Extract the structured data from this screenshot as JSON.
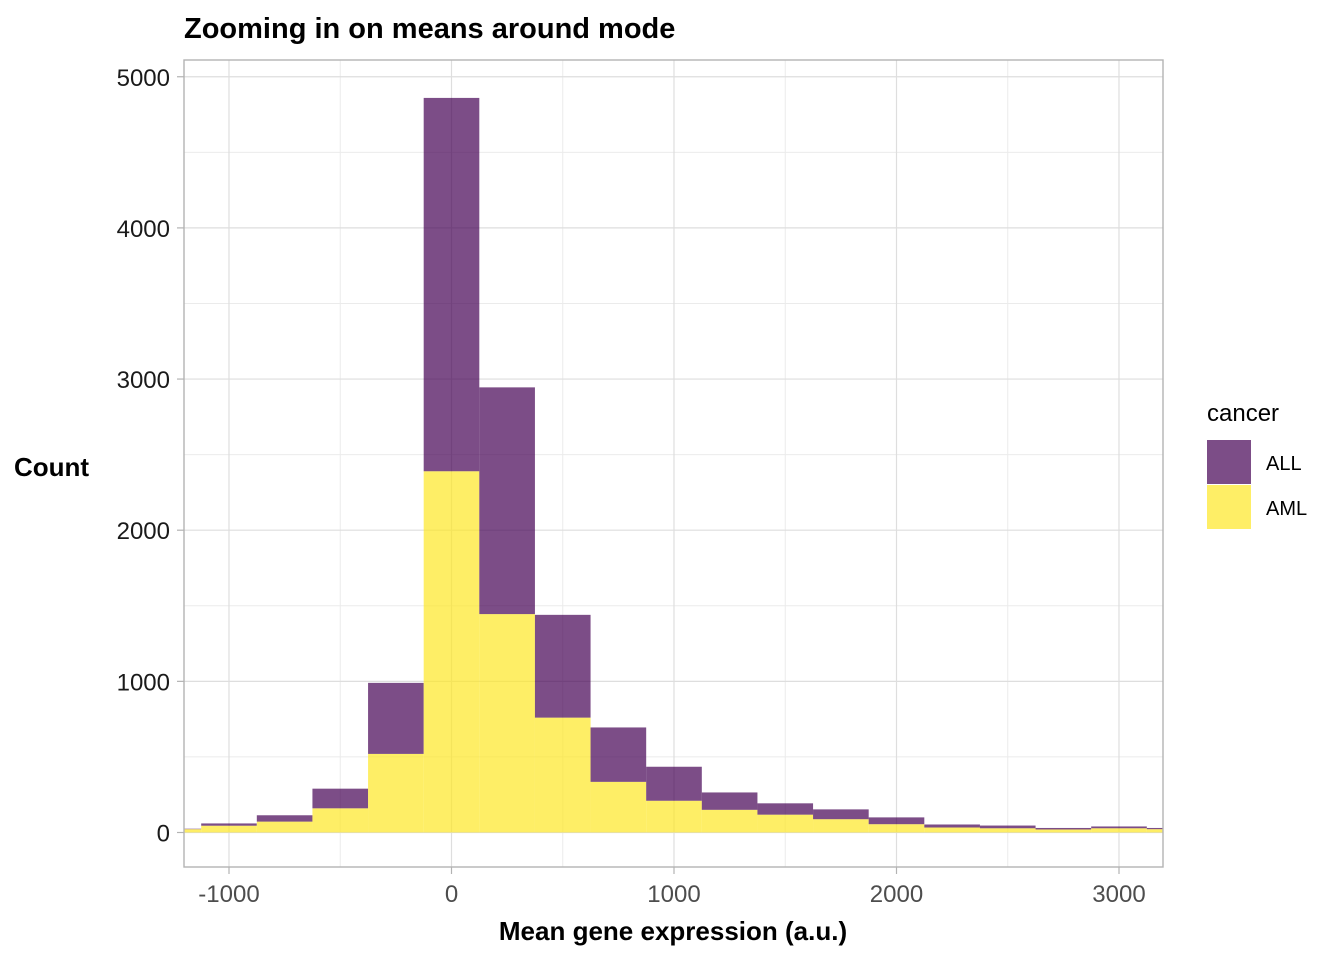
{
  "chart_data": {
    "type": "bar",
    "title": "Zooming in on means around mode",
    "xlabel": "Mean gene expression (a.u.)",
    "ylabel": "Count",
    "xlim": [
      -1200,
      3200
    ],
    "ylim": [
      0,
      5000
    ],
    "x_ticks": [
      -1000,
      0,
      1000,
      2000,
      3000
    ],
    "y_ticks": [
      0,
      1000,
      2000,
      3000,
      4000,
      5000
    ],
    "x_tick_labels": [
      "-1000",
      "0",
      "1000",
      "2000",
      "3000"
    ],
    "y_tick_labels": [
      "0",
      "1000",
      "2000",
      "3000",
      "4000",
      "5000"
    ],
    "grid": true,
    "stacked": true,
    "bin_width": 250,
    "bin_centers": [
      -1250,
      -1000,
      -750,
      -500,
      -250,
      0,
      250,
      500,
      750,
      1000,
      1250,
      1500,
      1750,
      2000,
      2250,
      2500,
      2750,
      3000,
      3250
    ],
    "series": [
      {
        "name": "ALL",
        "color": "#440154",
        "values": [
          3,
          15,
          42,
          130,
          470,
          2470,
          1500,
          680,
          360,
          225,
          115,
          75,
          65,
          45,
          20,
          18,
          10,
          12,
          8
        ]
      },
      {
        "name": "AML",
        "color": "#FDE725",
        "values": [
          22,
          45,
          72,
          160,
          520,
          2390,
          1445,
          760,
          335,
          210,
          150,
          118,
          88,
          55,
          33,
          28,
          20,
          28,
          22
        ]
      }
    ],
    "legend": {
      "title": "cancer",
      "position": "right",
      "entries": [
        "ALL",
        "AML"
      ]
    }
  }
}
